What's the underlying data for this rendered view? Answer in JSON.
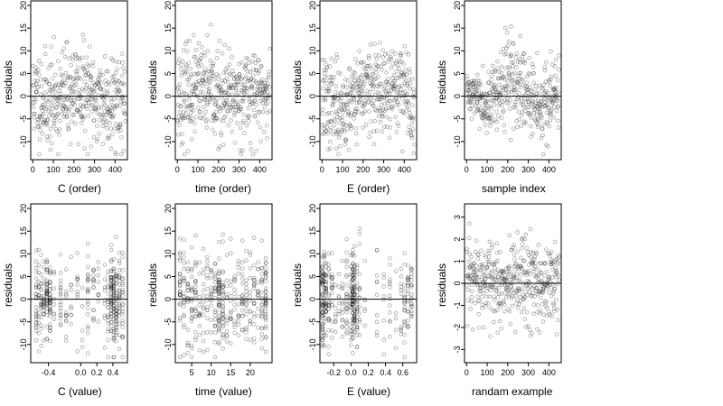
{
  "chart_data": [
    {
      "id": "C-order",
      "type": "scatter",
      "xlabel": "C (order)",
      "ylabel": "residuals",
      "xlim": [
        -10,
        460
      ],
      "ylim": [
        -14,
        21
      ],
      "xticks": [
        0,
        100,
        200,
        300,
        400
      ],
      "yticks": [
        -10,
        -5,
        0,
        5,
        10,
        15,
        20
      ],
      "hline": 0,
      "gen": {
        "n": 450,
        "seed": 11,
        "kind": "index",
        "sd": 5.2,
        "sdMul": [
          [
            0,
            1
          ],
          [
            450,
            1
          ]
        ],
        "wave": [
          [
            0,
            0
          ],
          [
            90,
            -1.5
          ],
          [
            200,
            1.5
          ],
          [
            330,
            -1
          ],
          [
            450,
            0
          ]
        ]
      }
    },
    {
      "id": "time-order",
      "type": "scatter",
      "xlabel": "time (order)",
      "ylabel": "residuals",
      "xlim": [
        -10,
        460
      ],
      "ylim": [
        -14,
        21
      ],
      "xticks": [
        0,
        100,
        200,
        300,
        400
      ],
      "yticks": [
        -10,
        -5,
        0,
        5,
        10,
        15,
        20
      ],
      "hline": 0,
      "gen": {
        "n": 450,
        "seed": 23,
        "kind": "index",
        "sd": 5.0,
        "sdMul": [
          [
            0,
            1
          ],
          [
            450,
            1
          ]
        ],
        "wave": [
          [
            0,
            0
          ],
          [
            120,
            1.5
          ],
          [
            220,
            -1
          ],
          [
            340,
            1
          ],
          [
            450,
            0
          ]
        ]
      }
    },
    {
      "id": "E-order",
      "type": "scatter",
      "xlabel": "E (order)",
      "ylabel": "residuals",
      "xlim": [
        -10,
        460
      ],
      "ylim": [
        -14,
        21
      ],
      "xticks": [
        0,
        100,
        200,
        300,
        400
      ],
      "yticks": [
        -10,
        -5,
        0,
        5,
        10,
        15,
        20
      ],
      "hline": 0,
      "gen": {
        "n": 450,
        "seed": 37,
        "kind": "index",
        "sd": 4.8,
        "sdMul": [
          [
            0,
            1
          ],
          [
            450,
            1
          ]
        ],
        "wave": [
          [
            0,
            -1
          ],
          [
            100,
            -3
          ],
          [
            190,
            2
          ],
          [
            300,
            0
          ],
          [
            400,
            3
          ],
          [
            450,
            -4
          ]
        ]
      }
    },
    {
      "id": "sample-index",
      "type": "scatter",
      "xlabel": "sample index",
      "ylabel": "residuals",
      "xlim": [
        -10,
        460
      ],
      "ylim": [
        -14,
        21
      ],
      "xticks": [
        0,
        100,
        200,
        300,
        400
      ],
      "yticks": [
        -10,
        -5,
        0,
        5,
        10,
        15,
        20
      ],
      "hline": 0,
      "gen": {
        "n": 450,
        "seed": 41,
        "kind": "index",
        "sd": 4.2,
        "sdMul": [
          [
            0,
            0.5
          ],
          [
            120,
            0.8
          ],
          [
            220,
            1.3
          ],
          [
            330,
            1
          ],
          [
            450,
            1
          ]
        ],
        "wave": [
          [
            0,
            1
          ],
          [
            110,
            -1
          ],
          [
            220,
            4
          ],
          [
            330,
            -2
          ],
          [
            450,
            0
          ]
        ]
      }
    },
    {
      "id": "C-value",
      "type": "scatter",
      "xlabel": "C (value)",
      "ylabel": "residuals",
      "xlim": [
        -0.62,
        0.58
      ],
      "ylim": [
        -14,
        21
      ],
      "xticks": [
        -0.4,
        0.0,
        0.2,
        0.4
      ],
      "xticklabels": [
        "-0.4",
        "0.0",
        "0.2",
        "0.4"
      ],
      "yticks": [
        -10,
        -5,
        0,
        5,
        10,
        15,
        20
      ],
      "hline": 0,
      "gen": {
        "n": 450,
        "seed": 53,
        "kind": "discrete",
        "sd": 5.0,
        "levels": [
          -0.55,
          -0.52,
          -0.49,
          -0.46,
          -0.42,
          -0.38,
          -0.33,
          -0.25,
          -0.18,
          -0.12,
          -0.04,
          0.02,
          0.09,
          0.16,
          0.22,
          0.3,
          0.34,
          0.38,
          0.41,
          0.44,
          0.48,
          0.52
        ],
        "weights": [
          3,
          2,
          2,
          2,
          4,
          3,
          1,
          2,
          1,
          1,
          1,
          1,
          2,
          1,
          1,
          2,
          2,
          4,
          4,
          4,
          3,
          2
        ]
      }
    },
    {
      "id": "time-value",
      "type": "scatter",
      "xlabel": "time (value)",
      "ylabel": "residuals",
      "xlim": [
        0.8,
        25.6
      ],
      "ylim": [
        -14,
        21
      ],
      "xticks": [
        5,
        10,
        15,
        20
      ],
      "yticks": [
        -10,
        -5,
        0,
        5,
        10,
        15,
        20
      ],
      "hline": 0,
      "gen": {
        "n": 450,
        "seed": 67,
        "kind": "discrete",
        "sd": 5.0,
        "levels": [
          2,
          3,
          4,
          5,
          6,
          7,
          8,
          9,
          10,
          11,
          12,
          13,
          14,
          15,
          16,
          17,
          18,
          19,
          20,
          21,
          22,
          23,
          24
        ],
        "weights": [
          1,
          1,
          1,
          1,
          1,
          1,
          1,
          1,
          1,
          2,
          3,
          2,
          1,
          1,
          1,
          1,
          1,
          1,
          1,
          1,
          1,
          1,
          2
        ]
      }
    },
    {
      "id": "E-value",
      "type": "scatter",
      "xlabel": "E (value)",
      "ylabel": "residuals",
      "xlim": [
        -0.36,
        0.76
      ],
      "ylim": [
        -14,
        21
      ],
      "xticks": [
        -0.2,
        0.0,
        0.2,
        0.4,
        0.6
      ],
      "xticklabels": [
        "-0.2",
        "0.0",
        "0.2",
        "0.4",
        "0.6"
      ],
      "yticks": [
        -10,
        -5,
        0,
        5,
        10,
        15,
        20
      ],
      "hline": 0,
      "gen": {
        "n": 450,
        "seed": 79,
        "kind": "discrete",
        "sd": 5.0,
        "levels": [
          -0.33,
          -0.31,
          -0.29,
          -0.26,
          -0.22,
          -0.18,
          -0.14,
          -0.1,
          -0.05,
          0.0,
          0.02,
          0.04,
          0.07,
          0.1,
          0.16,
          0.3,
          0.38,
          0.45,
          0.52,
          0.58,
          0.62,
          0.66,
          0.7
        ],
        "weights": [
          6,
          4,
          3,
          2,
          2,
          1,
          1,
          1,
          2,
          2,
          5,
          5,
          3,
          2,
          1,
          1,
          1,
          1,
          1,
          1,
          2,
          2,
          2
        ]
      }
    },
    {
      "id": "random-example",
      "type": "scatter",
      "xlabel": "randam example",
      "ylabel": "residuals",
      "xlim": [
        -10,
        460
      ],
      "ylim": [
        -3.6,
        3.6
      ],
      "xticks": [
        0,
        100,
        200,
        300,
        400
      ],
      "yticks": [
        -3,
        -2,
        -1,
        0,
        1,
        2,
        3
      ],
      "hline": 0,
      "gen": {
        "n": 450,
        "seed": 97,
        "kind": "index",
        "sd": 1.0,
        "sdMul": [
          [
            0,
            1
          ],
          [
            450,
            1
          ]
        ],
        "wave": [
          [
            0,
            0
          ],
          [
            450,
            0
          ]
        ]
      }
    }
  ]
}
